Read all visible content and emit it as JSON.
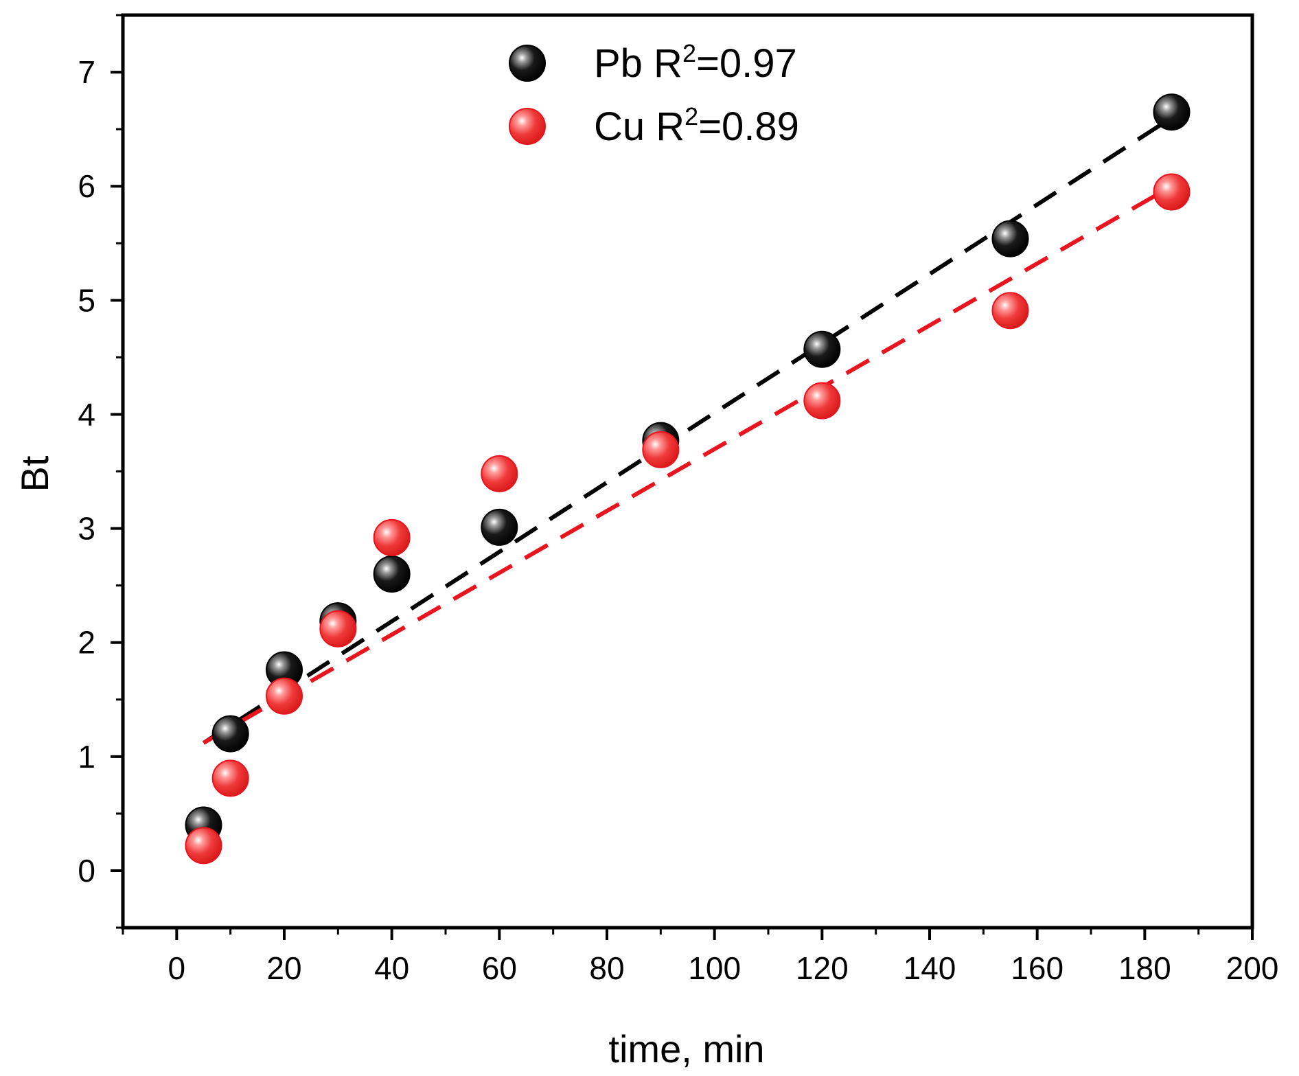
{
  "chart_data": {
    "type": "scatter",
    "title": "",
    "xlabel": "time, min",
    "ylabel": "Bt",
    "xlim": [
      -10,
      200
    ],
    "ylim": [
      -0.5,
      7.5
    ],
    "x_ticks": [
      0,
      20,
      40,
      60,
      80,
      100,
      120,
      140,
      160,
      180,
      200
    ],
    "y_ticks": [
      0,
      1,
      2,
      3,
      4,
      5,
      6,
      7
    ],
    "legend_position": "top-center",
    "grid": false,
    "series": [
      {
        "name": "Pb",
        "legend_label": "Pb R",
        "legend_sup": "2",
        "legend_value": "=0.97",
        "color": "#000000",
        "x": [
          5,
          10,
          20,
          30,
          40,
          60,
          90,
          120,
          155,
          185
        ],
        "y": [
          0.4,
          1.2,
          1.76,
          2.19,
          2.6,
          3.01,
          3.77,
          4.57,
          5.54,
          6.65
        ],
        "fit": {
          "x": [
            5,
            185
          ],
          "y": [
            1.12,
            6.6
          ]
        }
      },
      {
        "name": "Cu",
        "legend_label": "Cu R",
        "legend_sup": "2",
        "legend_value": "=0.89",
        "color": "#e8141e",
        "x": [
          5,
          10,
          20,
          30,
          40,
          60,
          90,
          120,
          155,
          185
        ],
        "y": [
          0.22,
          0.81,
          1.53,
          2.12,
          2.92,
          3.48,
          3.69,
          4.12,
          4.91,
          5.95
        ],
        "fit": {
          "x": [
            5,
            185
          ],
          "y": [
            1.12,
            6.0
          ]
        }
      }
    ]
  }
}
